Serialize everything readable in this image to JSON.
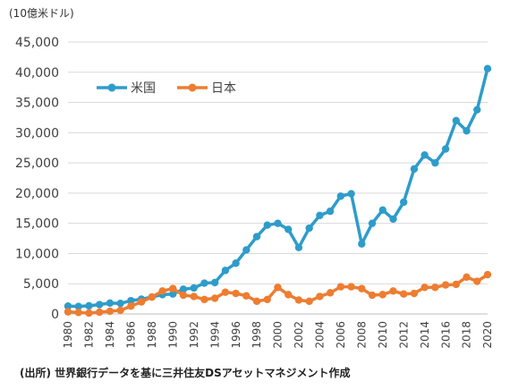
{
  "chart_data": {
    "type": "line",
    "unit_label": "(10億米ドル)",
    "source_note": "(出所) 世界銀行データを基に三井住友DSアセットマネジメント作成",
    "x": [
      1980,
      1981,
      1982,
      1983,
      1984,
      1985,
      1986,
      1987,
      1988,
      1989,
      1990,
      1991,
      1992,
      1993,
      1994,
      1995,
      1996,
      1997,
      1998,
      1999,
      2000,
      2001,
      2002,
      2003,
      2004,
      2005,
      2006,
      2007,
      2008,
      2009,
      2010,
      2011,
      2012,
      2013,
      2014,
      2015,
      2016,
      2017,
      2018,
      2019,
      2020
    ],
    "x_tick_labels": [
      "1980",
      "1982",
      "1984",
      "1986",
      "1988",
      "1990",
      "1992",
      "1994",
      "1996",
      "1998",
      "2000",
      "2002",
      "2004",
      "2006",
      "2008",
      "2010",
      "2012",
      "2014",
      "2016",
      "2018",
      "2020"
    ],
    "y_tick_labels": [
      "0",
      "5,000",
      "10,000",
      "15,000",
      "20,000",
      "25,000",
      "30,000",
      "35,000",
      "40,000",
      "45,000"
    ],
    "ylim": [
      0,
      45000
    ],
    "grid": "horizontal",
    "legend_position": "top-left",
    "series": [
      {
        "name": "米国",
        "color": "#2e9cca",
        "values": [
          1300,
          1250,
          1350,
          1550,
          1800,
          1750,
          2200,
          2450,
          2800,
          3200,
          3300,
          4100,
          4300,
          5100,
          5200,
          7200,
          8400,
          10600,
          12800,
          14700,
          15000,
          14000,
          11000,
          14200,
          16300,
          17000,
          19500,
          19900,
          11600,
          15000,
          17200,
          15700,
          18500,
          24000,
          26300,
          25000,
          27300,
          32000,
          30300,
          33800,
          40600
        ]
      },
      {
        "name": "日本",
        "color": "#ed7d31",
        "values": [
          350,
          250,
          150,
          300,
          450,
          600,
          1300,
          2000,
          2800,
          3800,
          4200,
          3100,
          2900,
          2400,
          2600,
          3600,
          3400,
          3000,
          2100,
          2400,
          4400,
          3200,
          2300,
          2100,
          2900,
          3500,
          4500,
          4500,
          4200,
          3100,
          3200,
          3800,
          3300,
          3400,
          4400,
          4400,
          4800,
          4900,
          6100,
          5400,
          6500
        ]
      }
    ]
  }
}
